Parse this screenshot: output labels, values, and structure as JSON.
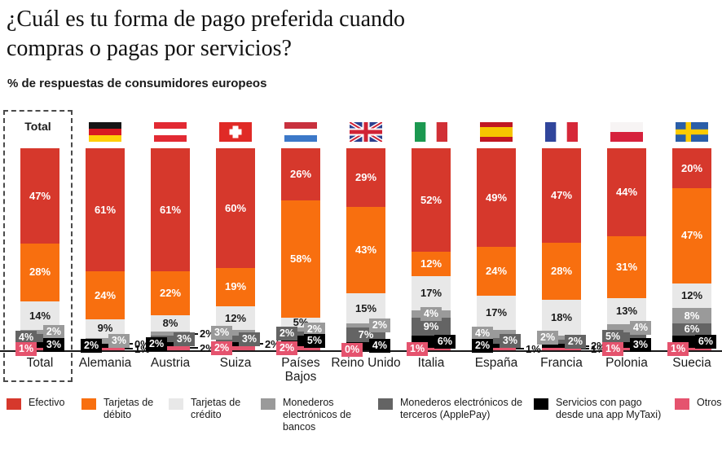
{
  "chart_data": {
    "type": "bar",
    "variant": "stacked-100-percent",
    "title": "¿Cuál es tu forma de pago preferida cuando\ncompras o pagas por servicios?",
    "subtitle": "% de respuestas de consumidores europeos",
    "unit": "%",
    "total_label": "Total",
    "legend_position": "bottom",
    "categories": [
      "Total",
      "Alemania",
      "Austria",
      "Suiza",
      "Países Bajos",
      "Reino Unido",
      "Italia",
      "España",
      "Francia",
      "Polonia",
      "Suecia"
    ],
    "flags": [
      null,
      "germany",
      "austria",
      "switzerland",
      "netherlands",
      "uk",
      "italy",
      "spain",
      "france",
      "poland",
      "sweden"
    ],
    "series": [
      {
        "name": "Efectivo",
        "color": "#d6382c",
        "text": "#ffffff",
        "values": [
          47,
          61,
          61,
          60,
          26,
          29,
          52,
          49,
          47,
          44,
          20
        ]
      },
      {
        "name": "Tarjetas de débito",
        "color": "#f86f0f",
        "text": "#ffffff",
        "values": [
          28,
          24,
          22,
          19,
          58,
          43,
          12,
          24,
          28,
          31,
          47
        ]
      },
      {
        "name": "Tarjetas de crédito",
        "color": "#e8e8e8",
        "text": "#1a1a1a",
        "values": [
          14,
          9,
          8,
          12,
          5,
          15,
          17,
          17,
          18,
          13,
          12
        ]
      },
      {
        "name": "Monederos electrónicos de bancos",
        "color": "#9a9a9a",
        "text": "#ffffff",
        "values": [
          2,
          3,
          2,
          3,
          2,
          2,
          4,
          4,
          2,
          4,
          8
        ]
      },
      {
        "name": "Monederos electrónicos de terceros (ApplePay)",
        "color": "#646464",
        "text": "#ffffff",
        "values": [
          4,
          0,
          3,
          3,
          2,
          7,
          9,
          3,
          2,
          5,
          6
        ]
      },
      {
        "name": "Servicios con pago desde una app MyTaxi)",
        "color": "#000000",
        "text": "#ffffff",
        "values": [
          3,
          2,
          2,
          2,
          5,
          4,
          6,
          2,
          2,
          3,
          6
        ]
      },
      {
        "name": "Otros",
        "color": "#e5536e",
        "text": "#ffffff",
        "values": [
          1,
          1,
          2,
          2,
          2,
          0,
          1,
          1,
          1,
          1,
          1
        ]
      }
    ],
    "label_modes": [
      [
        "center",
        "center",
        "center",
        "box-right",
        "box-left",
        "box-right",
        "box-left"
      ],
      [
        "center",
        "center",
        "center",
        "box-right",
        "callout",
        "box-left",
        "callout"
      ],
      [
        "center",
        "center",
        "center",
        "callout",
        "box-right",
        "box-left",
        "callout"
      ],
      [
        "center",
        "center",
        "center",
        "box-left",
        "box-right",
        "callout",
        "box-left"
      ],
      [
        "center",
        "center",
        "center",
        "box-right",
        "box-left",
        "box-right",
        "box-left"
      ],
      [
        "center",
        "center",
        "center",
        "box-right",
        "center",
        "box-right",
        "box-left"
      ],
      [
        "center",
        "center",
        "center",
        "box-center",
        "center",
        "box-right",
        "box-left"
      ],
      [
        "center",
        "center",
        "center",
        "box-left",
        "box-right",
        "box-left",
        "callout"
      ],
      [
        "center",
        "center",
        "center",
        "box-left",
        "box-right",
        "callout",
        "callout"
      ],
      [
        "center",
        "center",
        "center",
        "box-right",
        "box-left",
        "box-right",
        "box-left"
      ],
      [
        "center",
        "center",
        "center",
        "center",
        "center",
        "box-right",
        "box-left"
      ]
    ]
  }
}
